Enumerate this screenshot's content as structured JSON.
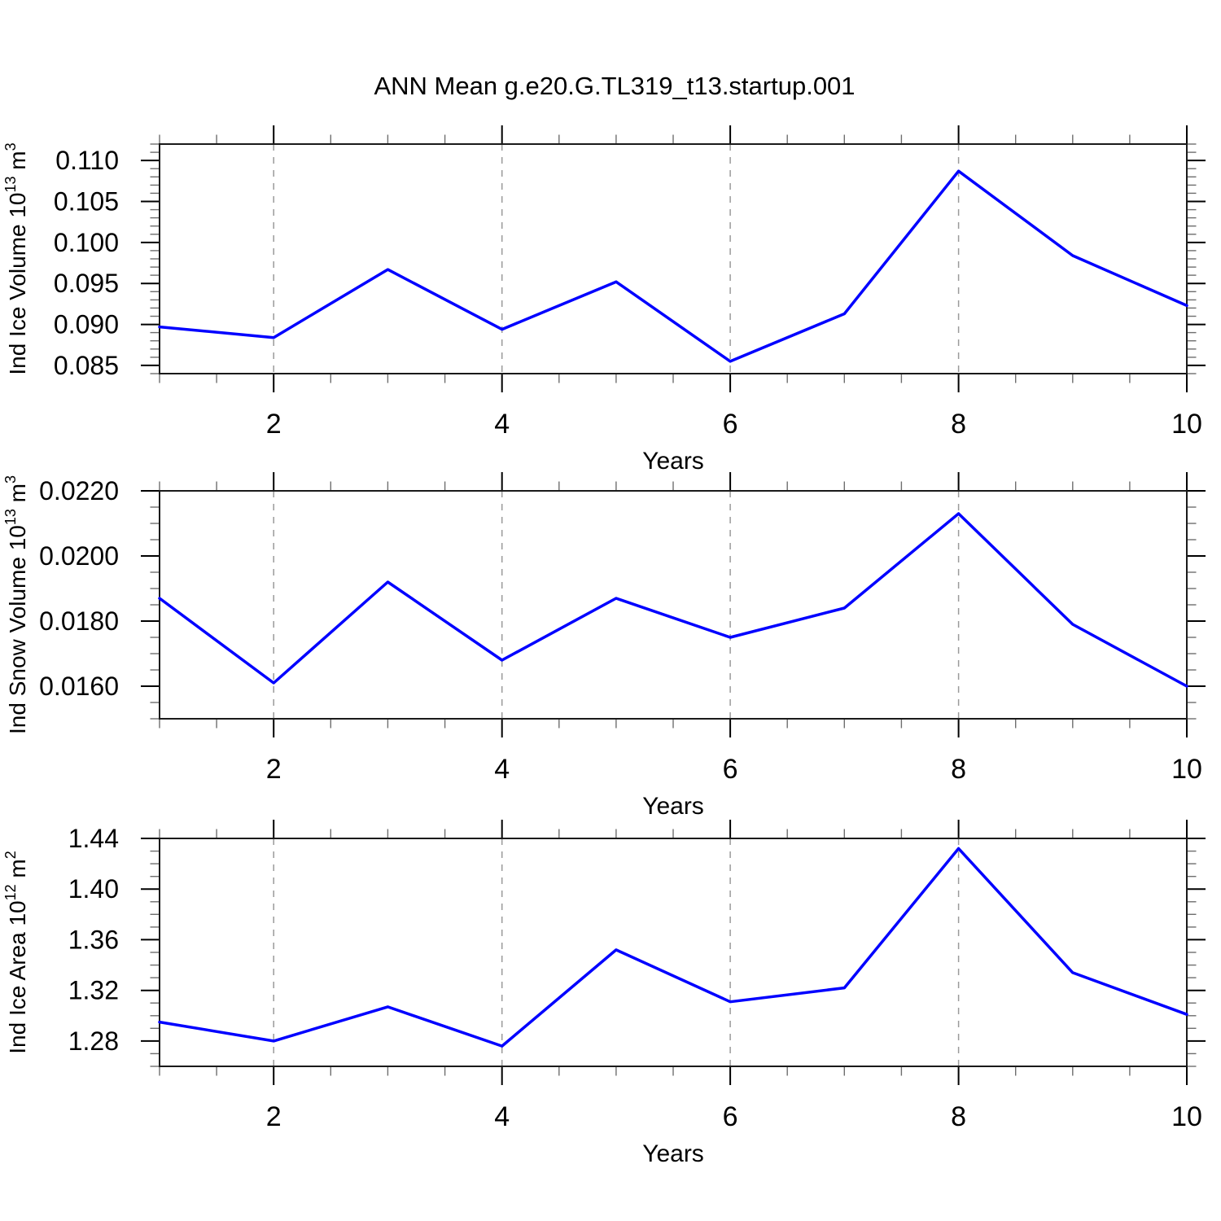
{
  "title": "ANN Mean g.e20.G.TL319_t13.startup.001",
  "colors": {
    "line": "#0000ff",
    "frame": "#1a1a1a",
    "major_tick": "#000000",
    "minor_tick": "#6e6e6e",
    "gridline": "#9a9a9a",
    "text": "#000000"
  },
  "x_axis": {
    "label": "Years",
    "range": [
      1,
      10
    ],
    "major_ticks": [
      2,
      4,
      6,
      8,
      10
    ],
    "major_tick_labels": [
      "2",
      "4",
      "6",
      "8",
      "10"
    ],
    "minor_step": 0.5,
    "dashed_gridlines": [
      2,
      4,
      6,
      8
    ]
  },
  "chart_data": [
    {
      "type": "line",
      "name": "ind-ice-volume",
      "ylabel_plain": "Ind Ice Volume 10^13 m^3",
      "ylabel": [
        {
          "t": "Ind Ice Volume 10"
        },
        {
          "t": "13",
          "sup": true
        },
        {
          "t": " m"
        },
        {
          "t": "3",
          "sup": true
        }
      ],
      "xlabel": "Years",
      "ylim": [
        0.084,
        0.112
      ],
      "ytick_values": [
        0.085,
        0.09,
        0.095,
        0.1,
        0.105,
        0.11
      ],
      "ytick_labels": [
        "0.085",
        "0.090",
        "0.095",
        "0.100",
        "0.105",
        "0.110"
      ],
      "y_minor_step": 0.001,
      "x": [
        1,
        2,
        3,
        4,
        5,
        6,
        7,
        8,
        9,
        10
      ],
      "values": [
        0.0897,
        0.0884,
        0.0967,
        0.0894,
        0.0952,
        0.0855,
        0.0913,
        0.1087,
        0.0984,
        0.0923
      ]
    },
    {
      "type": "line",
      "name": "ind-snow-volume",
      "ylabel_plain": "Ind Snow Volume 10^13 m^3",
      "ylabel": [
        {
          "t": "Ind Snow Volume 10"
        },
        {
          "t": "13",
          "sup": true
        },
        {
          "t": " m"
        },
        {
          "t": "3",
          "sup": true
        }
      ],
      "xlabel": "Years",
      "ylim": [
        0.015,
        0.022
      ],
      "ytick_values": [
        0.016,
        0.018,
        0.02,
        0.022
      ],
      "ytick_labels": [
        "0.0160",
        "0.0180",
        "0.0200",
        "0.0220"
      ],
      "y_minor_step": 0.0005,
      "x": [
        1,
        2,
        3,
        4,
        5,
        6,
        7,
        8,
        9,
        10
      ],
      "values": [
        0.0187,
        0.0161,
        0.0192,
        0.0168,
        0.0187,
        0.0175,
        0.0184,
        0.0213,
        0.0179,
        0.016
      ]
    },
    {
      "type": "line",
      "name": "ind-ice-area",
      "ylabel_plain": "Ind Ice Area 10^12 m^2",
      "ylabel": [
        {
          "t": "Ind Ice Area 10"
        },
        {
          "t": "12",
          "sup": true
        },
        {
          "t": " m"
        },
        {
          "t": "2",
          "sup": true
        }
      ],
      "xlabel": "Years",
      "ylim": [
        1.26,
        1.44
      ],
      "ytick_values": [
        1.28,
        1.32,
        1.36,
        1.4,
        1.44
      ],
      "ytick_labels": [
        "1.28",
        "1.32",
        "1.36",
        "1.40",
        "1.44"
      ],
      "y_minor_step": 0.01,
      "x": [
        1,
        2,
        3,
        4,
        5,
        6,
        7,
        8,
        9,
        10
      ],
      "values": [
        1.295,
        1.28,
        1.307,
        1.276,
        1.352,
        1.311,
        1.322,
        1.432,
        1.334,
        1.301
      ]
    }
  ]
}
